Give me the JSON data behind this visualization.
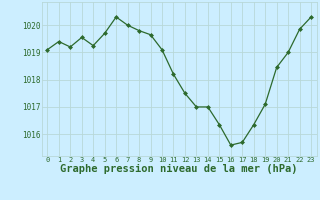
{
  "hours": [
    0,
    1,
    2,
    3,
    4,
    5,
    6,
    7,
    8,
    9,
    10,
    11,
    12,
    13,
    14,
    15,
    16,
    17,
    18,
    19,
    20,
    21,
    22,
    23
  ],
  "pressure": [
    1019.1,
    1019.4,
    1019.2,
    1019.55,
    1019.25,
    1019.7,
    1020.3,
    1020.0,
    1019.8,
    1019.65,
    1019.1,
    1018.2,
    1017.5,
    1017.0,
    1017.0,
    1016.35,
    1015.6,
    1015.7,
    1016.35,
    1017.1,
    1018.45,
    1019.0,
    1019.85,
    1020.3
  ],
  "line_color": "#2d6a2d",
  "marker": "D",
  "marker_size": 2.0,
  "bg_color": "#cceeff",
  "grid_color": "#b8d8d8",
  "xlabel": "Graphe pression niveau de la mer (hPa)",
  "xlabel_fontsize": 7.5,
  "ytick_labels": [
    "1016",
    "1017",
    "1018",
    "1019",
    "1020"
  ],
  "ytick_values": [
    1016,
    1017,
    1018,
    1019,
    1020
  ],
  "ylim": [
    1015.2,
    1020.85
  ],
  "xlim": [
    -0.5,
    23.5
  ]
}
